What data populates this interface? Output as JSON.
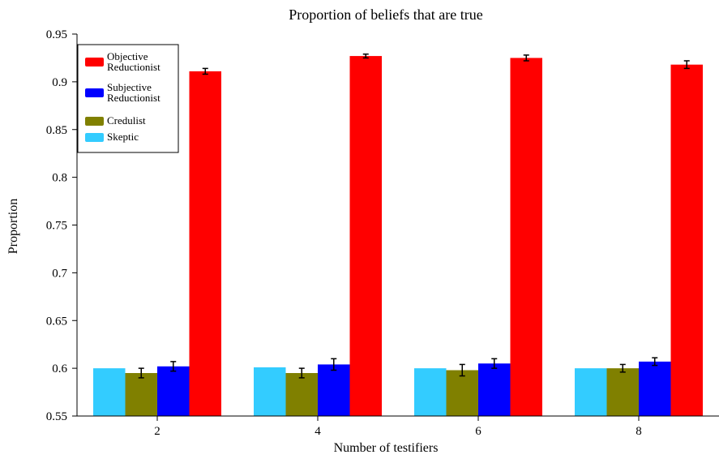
{
  "chart_data": {
    "type": "bar",
    "title": "Proportion of beliefs that are true",
    "xlabel": "Number of testifiers",
    "ylabel": "Proportion",
    "categories": [
      "2",
      "4",
      "6",
      "8"
    ],
    "ylim": [
      0.55,
      0.95
    ],
    "yticks": [
      0.55,
      0.6,
      0.65,
      0.7,
      0.75,
      0.8,
      0.85,
      0.9,
      0.95
    ],
    "ytick_labels": [
      "0.55",
      "0.6",
      "0.65",
      "0.7",
      "0.75",
      "0.8",
      "0.85",
      "0.9",
      "0.95"
    ],
    "grid": false,
    "legend_position": "top-left",
    "series": [
      {
        "name": "Skeptic",
        "color": "#33ccff",
        "values": [
          0.6,
          0.601,
          0.6,
          0.6
        ],
        "errors": [
          null,
          null,
          null,
          null
        ]
      },
      {
        "name": "Credulist",
        "color": "#808000",
        "values": [
          0.595,
          0.595,
          0.598,
          0.6
        ],
        "errors": [
          0.005,
          0.005,
          0.006,
          0.004
        ]
      },
      {
        "name": "Subjective Reductionist",
        "legend_lines": [
          "Subjective",
          "Reductionist"
        ],
        "color": "#0000ff",
        "values": [
          0.602,
          0.604,
          0.605,
          0.607
        ],
        "errors": [
          0.005,
          0.006,
          0.005,
          0.004
        ]
      },
      {
        "name": "Objective Reductionist",
        "legend_lines": [
          "Objective",
          "Reductionist"
        ],
        "color": "#ff0000",
        "values": [
          0.911,
          0.927,
          0.925,
          0.918
        ],
        "errors": [
          0.003,
          0.002,
          0.003,
          0.004
        ]
      }
    ],
    "legend_order": [
      "Objective Reductionist",
      "Subjective Reductionist",
      "Credulist",
      "Skeptic"
    ]
  }
}
